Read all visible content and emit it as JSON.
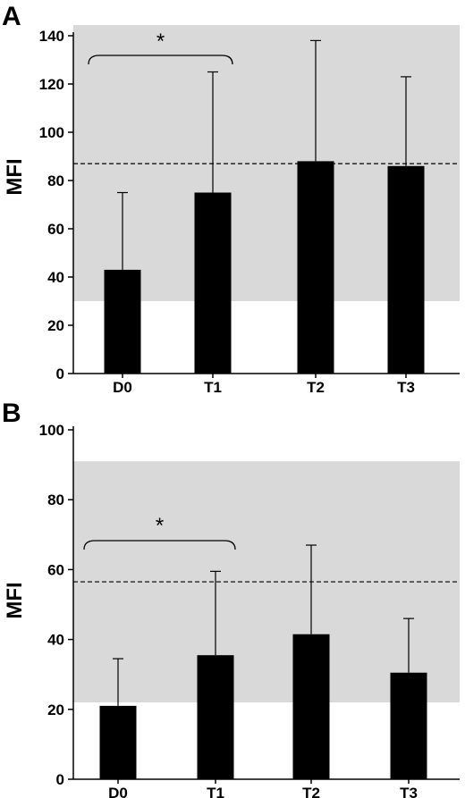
{
  "chart_data": [
    {
      "panel": "A",
      "type": "bar",
      "ylabel": "MFI",
      "categories": [
        "D0",
        "T1",
        "T2",
        "T3"
      ],
      "values": [
        43,
        75,
        88,
        86
      ],
      "error_upper": [
        75,
        125,
        138,
        123
      ],
      "ylim": [
        0,
        140
      ],
      "yticks": [
        "0",
        "20",
        "40",
        "60",
        "80",
        "100",
        "120",
        "140"
      ],
      "reference_line": 87,
      "shaded_band": [
        30,
        145
      ],
      "annotation": {
        "text": "*",
        "between": [
          "D0",
          "T1"
        ]
      }
    },
    {
      "panel": "B",
      "type": "bar",
      "ylabel": "MFI",
      "categories": [
        "D0",
        "T1",
        "T2",
        "T3"
      ],
      "values": [
        21,
        35.5,
        41.5,
        30.5
      ],
      "error_upper": [
        34.5,
        59.5,
        67,
        46
      ],
      "ylim": [
        0,
        100
      ],
      "yticks": [
        "0",
        "20",
        "40",
        "60",
        "80",
        "100"
      ],
      "reference_line": 56.5,
      "shaded_band": [
        22,
        91
      ],
      "annotation": {
        "text": "*",
        "between": [
          "D0",
          "T1"
        ]
      }
    }
  ],
  "colors": {
    "bar": "#000000",
    "band": "#d9d9d9",
    "axis": "#000000"
  }
}
